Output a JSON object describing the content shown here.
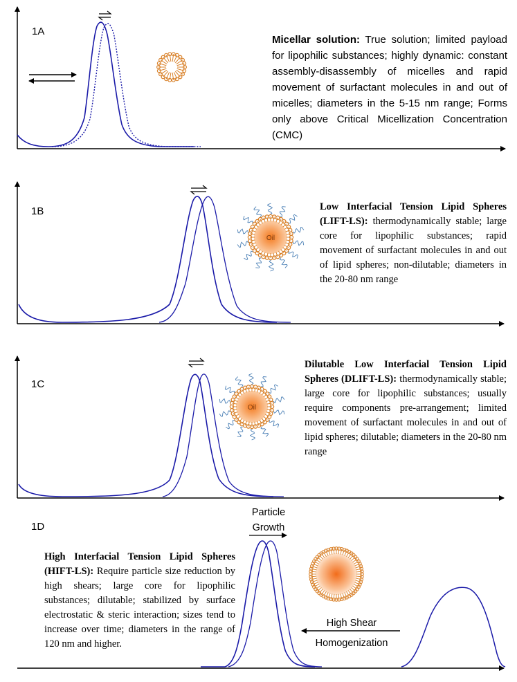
{
  "panels": [
    {
      "id": "1A",
      "label": "1A",
      "title": "Micellar solution:",
      "body": " True solution; limited payload for lipophilic substances; highly dynamic: constant assembly-disassembly of micelles and rapid movement of surfactant molecules in and out of micelles; diameters in the 5-15 nm range; Forms only above Critical Micellization Concentration (CMC)"
    },
    {
      "id": "1B",
      "label": "1B",
      "title": "Low Interfacial Tension Lipid Spheres (LIFT-LS):",
      "body": " thermodynamically stable; large core for lipophilic substances; rapid movement of surfactant molecules in and out of lipid spheres; non-dilutable; diameters in the 20-80 nm range",
      "core_label": "Oil"
    },
    {
      "id": "1C",
      "label": "1C",
      "title": "Dilutable Low Interfacial Tension Lipid Spheres (DLIFT-LS):",
      "body": " thermodynamically stable; large core for lipophilic substances; usually require components pre-arrangement; limited movement of surfactant molecules in and out of lipid spheres; dilutable; diameters in the 20-80 nm range",
      "core_label": "Oil"
    },
    {
      "id": "1D",
      "label": "1D",
      "title": "High Interfacial Tension Lipid Spheres (HIFT-LS):",
      "body": " Require particle size reduction by high shears; large core for lipophilic substances; dilutable; stabilized by surface electrostatic & steric interaction; sizes tend to increase over time; diameters in the range of 120 nm and higher.",
      "annotation_growth_line1": "Particle",
      "annotation_growth_line2": "Growth",
      "annotation_shear_line1": "High Shear",
      "annotation_shear_line2": "Homogenization"
    }
  ],
  "colors": {
    "curve": "#1a1aa8",
    "axis": "#000000",
    "shell": "#d9822b",
    "core_center": "#f47b20",
    "core_edge": "#fde3c9",
    "tail": "#4a7fb5"
  }
}
